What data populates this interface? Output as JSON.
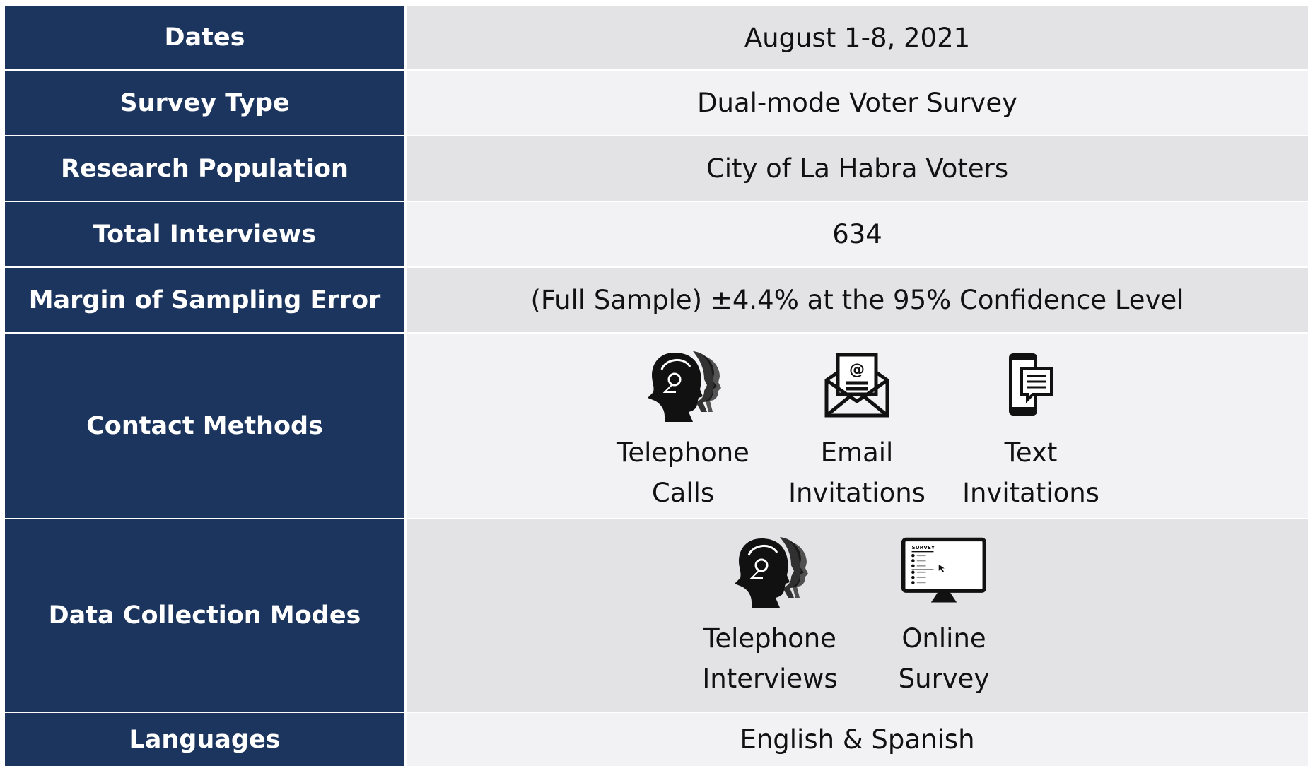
{
  "rows": [
    {
      "label": "Dates",
      "value": "August 1-8, 2021"
    },
    {
      "label": "Survey Type",
      "value": "Dual-mode Voter Survey"
    },
    {
      "label": "Research Population",
      "value": "City of La Habra Voters"
    },
    {
      "label": "Total Interviews",
      "value": "634"
    },
    {
      "label": "Margin of Sampling Error",
      "value": "(Full Sample) ±4.4% at the 95% Confidence Level"
    },
    {
      "label": "Contact Methods",
      "items": [
        {
          "lines": [
            "Telephone",
            "Calls"
          ]
        },
        {
          "lines": [
            "Email",
            "Invitations"
          ]
        },
        {
          "lines": [
            "Text",
            "Invitations"
          ]
        }
      ]
    },
    {
      "label": "Data Collection Modes",
      "items": [
        {
          "lines": [
            "Telephone",
            "Interviews"
          ]
        },
        {
          "lines": [
            "Online",
            "Survey"
          ],
          "screen_text": "SURVEY"
        }
      ]
    },
    {
      "label": "Languages",
      "value": "English & Spanish"
    }
  ]
}
